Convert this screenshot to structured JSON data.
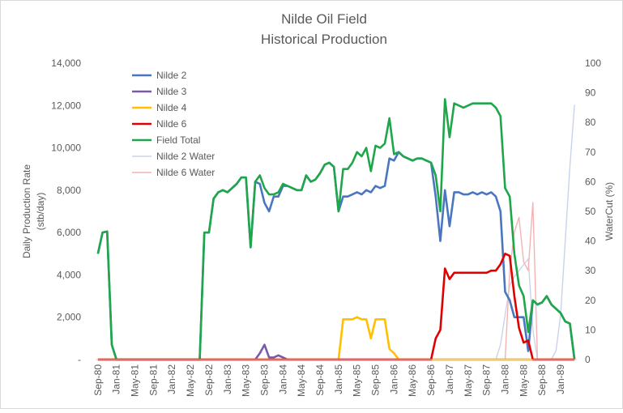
{
  "chart_data": {
    "type": "line",
    "title": "Nilde Oil Field",
    "subtitle": "Historical Production",
    "ylabel": [
      "Daily Production Rate",
      "(stb/day)"
    ],
    "y2label": "WaterCut (%)",
    "legend": "upper left",
    "grid": false,
    "categories": [
      "Sep-80",
      null,
      null,
      null,
      "Jan-81",
      null,
      null,
      null,
      "May-81",
      null,
      null,
      null,
      "Sep-81",
      null,
      null,
      null,
      "Jan-82",
      null,
      null,
      null,
      "May-82",
      null,
      null,
      null,
      "Sep-82",
      null,
      null,
      null,
      "Jan-83",
      null,
      null,
      null,
      "May-83",
      null,
      null,
      null,
      "Sep-83",
      null,
      null,
      null,
      "Jan-84",
      null,
      null,
      null,
      "May-84",
      null,
      null,
      null,
      "Sep-84",
      null,
      null,
      null,
      "Jan-85",
      null,
      null,
      null,
      "May-85",
      null,
      null,
      null,
      "Sep-85",
      null,
      null,
      null,
      "Jan-86",
      null,
      null,
      null,
      "May-86",
      null,
      null,
      null,
      "Sep-86",
      null,
      null,
      null,
      "Jan-87",
      null,
      null,
      null,
      "May-87",
      null,
      null,
      null,
      "Sep-87",
      null,
      null,
      null,
      "Jan-88",
      null,
      null,
      null,
      "May-88",
      null,
      null,
      null,
      "Sep-88",
      null,
      null,
      null,
      "Jan-89",
      null,
      null,
      null
    ],
    "ylim": [
      0,
      14000
    ],
    "yticks": [
      {
        "value": 0,
        "label": "-"
      },
      {
        "value": 2000,
        "label": "2,000"
      },
      {
        "value": 4000,
        "label": "4,000"
      },
      {
        "value": 6000,
        "label": "6,000"
      },
      {
        "value": 8000,
        "label": "8,000"
      },
      {
        "value": 10000,
        "label": "10,000"
      },
      {
        "value": 12000,
        "label": "12,000"
      },
      {
        "value": 14000,
        "label": "14,000"
      }
    ],
    "y2lim": [
      0,
      100
    ],
    "y2ticks": [
      0,
      10,
      20,
      30,
      40,
      50,
      60,
      70,
      80,
      90,
      100
    ],
    "series": [
      {
        "name": "Nilde 2",
        "color": "#4a76c0",
        "values": [
          5000,
          6000,
          6050,
          700,
          0,
          0,
          0,
          0,
          0,
          0,
          0,
          0,
          0,
          0,
          0,
          0,
          0,
          0,
          0,
          0,
          0,
          0,
          0,
          6000,
          6000,
          7600,
          7900,
          8000,
          7900,
          8100,
          8300,
          8600,
          8600,
          5300,
          8400,
          8300,
          7400,
          7000,
          7700,
          7700,
          8200,
          8200,
          8100,
          8000,
          8000,
          8700,
          8400,
          8500,
          8800,
          9200,
          9300,
          9100,
          7000,
          7700,
          7700,
          7800,
          7900,
          7800,
          8000,
          7900,
          8200,
          8100,
          8200,
          9500,
          9400,
          9800,
          9600,
          9500,
          9400,
          9500,
          9500,
          9400,
          9300,
          7700,
          5600,
          8000,
          6300,
          7900,
          7900,
          7800,
          7800,
          7900,
          7800,
          7900,
          7800,
          7900,
          7700,
          7000,
          3200,
          2800,
          2000,
          2000,
          2000,
          400,
          2800,
          2600,
          2700,
          3000,
          2600,
          2400,
          2200,
          1800,
          1700,
          0
        ]
      },
      {
        "name": "Nilde 3",
        "color": "#7a5aa8",
        "values": [
          0,
          0,
          0,
          0,
          0,
          0,
          0,
          0,
          0,
          0,
          0,
          0,
          0,
          0,
          0,
          0,
          0,
          0,
          0,
          0,
          0,
          0,
          0,
          0,
          0,
          0,
          0,
          0,
          0,
          0,
          0,
          0,
          0,
          0,
          0,
          300,
          700,
          100,
          100,
          200,
          100,
          0,
          0,
          0,
          0,
          0,
          0,
          0,
          0,
          0,
          0,
          0,
          0,
          0,
          0,
          0,
          0,
          0,
          0,
          0,
          0,
          0,
          0,
          0,
          0,
          0,
          0,
          0,
          0,
          0,
          0,
          0,
          0,
          0,
          0,
          0,
          0,
          0,
          0,
          0,
          0,
          0,
          0,
          0,
          0,
          0,
          0,
          0,
          0,
          0,
          0,
          0,
          0,
          0,
          0,
          0,
          0,
          0,
          0,
          0,
          0,
          0,
          0,
          0
        ]
      },
      {
        "name": "Nilde 4",
        "color": "#ffc000",
        "values": [
          0,
          0,
          0,
          0,
          0,
          0,
          0,
          0,
          0,
          0,
          0,
          0,
          0,
          0,
          0,
          0,
          0,
          0,
          0,
          0,
          0,
          0,
          0,
          0,
          0,
          0,
          0,
          0,
          0,
          0,
          0,
          0,
          0,
          0,
          0,
          0,
          0,
          0,
          0,
          0,
          0,
          0,
          0,
          0,
          0,
          0,
          0,
          0,
          0,
          0,
          0,
          0,
          0,
          1900,
          1900,
          1900,
          2000,
          1900,
          1900,
          1000,
          1900,
          1900,
          1900,
          500,
          300,
          0,
          0,
          0,
          0,
          0,
          0,
          0,
          0,
          0,
          0,
          0,
          0,
          0,
          0,
          0,
          0,
          0,
          0,
          0,
          0,
          0,
          0,
          0,
          0,
          0,
          0,
          0,
          0,
          0,
          0,
          0,
          0,
          0,
          0,
          0,
          0,
          0,
          0,
          0
        ]
      },
      {
        "name": "Nilde 6",
        "color": "#e00000",
        "values": [
          0,
          0,
          0,
          0,
          0,
          0,
          0,
          0,
          0,
          0,
          0,
          0,
          0,
          0,
          0,
          0,
          0,
          0,
          0,
          0,
          0,
          0,
          0,
          0,
          0,
          0,
          0,
          0,
          0,
          0,
          0,
          0,
          0,
          0,
          0,
          0,
          0,
          0,
          0,
          0,
          0,
          0,
          0,
          0,
          0,
          0,
          0,
          0,
          0,
          0,
          0,
          0,
          0,
          0,
          0,
          0,
          0,
          0,
          0,
          0,
          0,
          0,
          0,
          0,
          0,
          0,
          0,
          0,
          0,
          0,
          0,
          0,
          0,
          1000,
          1400,
          4300,
          3800,
          4100,
          4100,
          4100,
          4100,
          4100,
          4100,
          4100,
          4100,
          4200,
          4200,
          4500,
          5000,
          4900,
          3000,
          1500,
          800,
          900,
          0,
          0,
          0,
          0,
          0,
          0,
          0,
          0,
          0,
          0
        ]
      },
      {
        "name": "Field Total",
        "color": "#1fa64a",
        "values": [
          5000,
          6000,
          6050,
          700,
          0,
          0,
          0,
          0,
          0,
          0,
          0,
          0,
          0,
          0,
          0,
          0,
          0,
          0,
          0,
          0,
          0,
          0,
          0,
          6000,
          6000,
          7600,
          7900,
          8000,
          7900,
          8100,
          8300,
          8600,
          8600,
          5300,
          8400,
          8700,
          8100,
          7800,
          7800,
          7900,
          8300,
          8200,
          8100,
          8000,
          8000,
          8700,
          8400,
          8500,
          8800,
          9200,
          9300,
          9100,
          7000,
          9000,
          9000,
          9300,
          9800,
          9600,
          10000,
          8900,
          10100,
          10000,
          10200,
          11400,
          9700,
          9800,
          9600,
          9500,
          9400,
          9500,
          9500,
          9400,
          9300,
          8700,
          7000,
          12300,
          10500,
          12100,
          12000,
          11900,
          12000,
          12100,
          12100,
          12100,
          12100,
          12100,
          11900,
          11500,
          8100,
          7700,
          5000,
          3500,
          3000,
          1300,
          2800,
          2600,
          2700,
          3000,
          2600,
          2400,
          2200,
          1800,
          1700,
          0
        ]
      },
      {
        "name": "Nilde 2 Water",
        "color": "#c9d3ec",
        "axis": "y2",
        "values": [
          0,
          0,
          0,
          0,
          0,
          0,
          0,
          0,
          0,
          0,
          0,
          0,
          0,
          0,
          0,
          0,
          0,
          0,
          0,
          0,
          0,
          0,
          0,
          0,
          0,
          0,
          0,
          0,
          0,
          0,
          0,
          0,
          0,
          0,
          0,
          0,
          0,
          0,
          0,
          0,
          0,
          0,
          0,
          0,
          0,
          0,
          0,
          0,
          0,
          0,
          0,
          0,
          0,
          0,
          0,
          0,
          0,
          0,
          0,
          0,
          0,
          0,
          0,
          0,
          0,
          0,
          0,
          0,
          0,
          0,
          0,
          0,
          0,
          0,
          0,
          0,
          0,
          0,
          0,
          0,
          0,
          0,
          0,
          0,
          0,
          0,
          0,
          5,
          15,
          25,
          28,
          30,
          32,
          34,
          10,
          0,
          0,
          0,
          0,
          3,
          15,
          40,
          65,
          86
        ]
      },
      {
        "name": "Nilde 6 Water",
        "color": "#f4b3b3",
        "axis": "y2",
        "values": [
          0,
          0,
          0,
          0,
          0,
          0,
          0,
          0,
          0,
          0,
          0,
          0,
          0,
          0,
          0,
          0,
          0,
          0,
          0,
          0,
          0,
          0,
          0,
          0,
          0,
          0,
          0,
          0,
          0,
          0,
          0,
          0,
          0,
          0,
          0,
          0,
          0,
          0,
          0,
          0,
          0,
          0,
          0,
          0,
          0,
          0,
          0,
          0,
          0,
          0,
          0,
          0,
          0,
          0,
          0,
          0,
          0,
          0,
          0,
          0,
          0,
          0,
          0,
          0,
          0,
          0,
          0,
          0,
          0,
          0,
          0,
          0,
          0,
          0,
          0,
          0,
          0,
          0,
          0,
          0,
          0,
          0,
          0,
          0,
          0,
          0,
          0,
          0,
          0,
          30,
          43,
          48,
          33,
          30,
          53,
          0,
          0,
          0,
          0,
          0,
          0,
          0,
          0,
          0
        ]
      }
    ]
  }
}
